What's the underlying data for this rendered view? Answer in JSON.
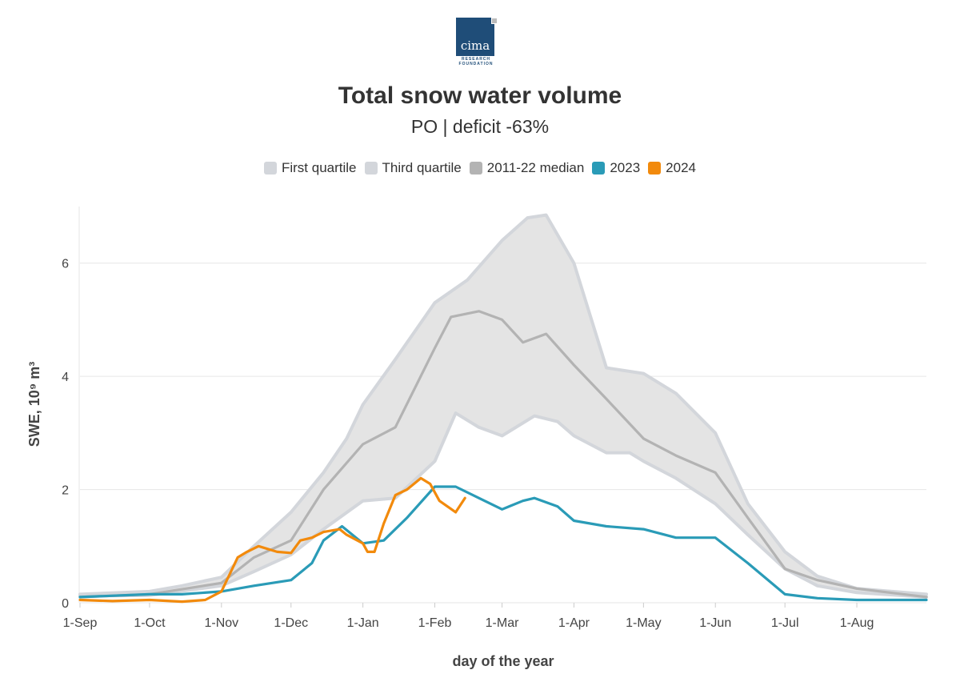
{
  "logo": {
    "text": "cima",
    "sub": "RESEARCH FOUNDATION"
  },
  "chart_data": {
    "type": "line",
    "title": "Total snow water volume",
    "subtitle": "PO | deficit -63%",
    "xlabel": "day of the year",
    "ylabel": "SWE, 10⁹ m³",
    "ylim": [
      0,
      7
    ],
    "yticks": [
      0,
      2,
      4,
      6
    ],
    "xticks": [
      "1-Sep",
      "1-Oct",
      "1-Nov",
      "1-Dec",
      "1-Jan",
      "1-Feb",
      "1-Mar",
      "1-Apr",
      "1-May",
      "1-Jun",
      "1-Jul",
      "1-Aug"
    ],
    "xtick_dates": [
      "2023-09-01",
      "2023-10-01",
      "2023-11-01",
      "2023-12-01",
      "2024-01-01",
      "2024-02-01",
      "2024-03-01",
      "2024-04-01",
      "2024-05-01",
      "2024-06-01",
      "2024-07-01",
      "2024-08-01"
    ],
    "xlim": [
      "2023-09-01",
      "2024-08-31"
    ],
    "grid": true,
    "legend_position": "top",
    "series": [
      {
        "name": "First quartile",
        "color": "#d3d6db",
        "kind": "band-edge",
        "points": [
          [
            "2023-09-01",
            0.12
          ],
          [
            "2023-10-01",
            0.13
          ],
          [
            "2023-11-01",
            0.3
          ],
          [
            "2023-11-15",
            0.55
          ],
          [
            "2023-12-01",
            0.85
          ],
          [
            "2023-12-15",
            1.3
          ],
          [
            "2024-01-01",
            1.8
          ],
          [
            "2024-01-15",
            1.85
          ],
          [
            "2024-02-01",
            2.5
          ],
          [
            "2024-02-10",
            3.35
          ],
          [
            "2024-02-20",
            3.1
          ],
          [
            "2024-03-01",
            2.95
          ],
          [
            "2024-03-15",
            3.3
          ],
          [
            "2024-03-25",
            3.2
          ],
          [
            "2024-04-01",
            2.95
          ],
          [
            "2024-04-15",
            2.65
          ],
          [
            "2024-04-25",
            2.65
          ],
          [
            "2024-05-01",
            2.5
          ],
          [
            "2024-05-15",
            2.2
          ],
          [
            "2024-06-01",
            1.75
          ],
          [
            "2024-06-15",
            1.2
          ],
          [
            "2024-07-01",
            0.6
          ],
          [
            "2024-07-15",
            0.3
          ],
          [
            "2024-08-01",
            0.18
          ],
          [
            "2024-08-31",
            0.1
          ]
        ]
      },
      {
        "name": "Third quartile",
        "color": "#d3d6db",
        "kind": "band-edge",
        "points": [
          [
            "2023-09-01",
            0.15
          ],
          [
            "2023-10-01",
            0.2
          ],
          [
            "2023-10-15",
            0.3
          ],
          [
            "2023-11-01",
            0.45
          ],
          [
            "2023-11-15",
            1.0
          ],
          [
            "2023-12-01",
            1.6
          ],
          [
            "2023-12-15",
            2.3
          ],
          [
            "2023-12-25",
            2.9
          ],
          [
            "2024-01-01",
            3.5
          ],
          [
            "2024-01-15",
            4.3
          ],
          [
            "2024-02-01",
            5.3
          ],
          [
            "2024-02-15",
            5.7
          ],
          [
            "2024-03-01",
            6.4
          ],
          [
            "2024-03-12",
            6.8
          ],
          [
            "2024-03-20",
            6.85
          ],
          [
            "2024-04-01",
            6.0
          ],
          [
            "2024-04-15",
            4.15
          ],
          [
            "2024-05-01",
            4.05
          ],
          [
            "2024-05-15",
            3.7
          ],
          [
            "2024-06-01",
            3.0
          ],
          [
            "2024-06-15",
            1.75
          ],
          [
            "2024-07-01",
            0.9
          ],
          [
            "2024-07-15",
            0.47
          ],
          [
            "2024-08-01",
            0.25
          ],
          [
            "2024-08-31",
            0.15
          ]
        ]
      },
      {
        "name": "2011-22 median",
        "color": "#b3b3b3",
        "kind": "line",
        "points": [
          [
            "2023-09-01",
            0.1
          ],
          [
            "2023-10-01",
            0.15
          ],
          [
            "2023-11-01",
            0.35
          ],
          [
            "2023-11-15",
            0.8
          ],
          [
            "2023-12-01",
            1.1
          ],
          [
            "2023-12-15",
            2.0
          ],
          [
            "2024-01-01",
            2.8
          ],
          [
            "2024-01-15",
            3.1
          ],
          [
            "2024-02-01",
            4.5
          ],
          [
            "2024-02-08",
            5.05
          ],
          [
            "2024-02-20",
            5.15
          ],
          [
            "2024-03-01",
            5.0
          ],
          [
            "2024-03-10",
            4.6
          ],
          [
            "2024-03-20",
            4.75
          ],
          [
            "2024-04-01",
            4.2
          ],
          [
            "2024-04-15",
            3.6
          ],
          [
            "2024-05-01",
            2.9
          ],
          [
            "2024-05-15",
            2.6
          ],
          [
            "2024-06-01",
            2.3
          ],
          [
            "2024-06-15",
            1.5
          ],
          [
            "2024-07-01",
            0.6
          ],
          [
            "2024-07-15",
            0.4
          ],
          [
            "2024-08-01",
            0.25
          ],
          [
            "2024-08-31",
            0.1
          ]
        ]
      },
      {
        "name": "2023",
        "color": "#2a9bb7",
        "kind": "line",
        "points": [
          [
            "2023-09-01",
            0.1
          ],
          [
            "2023-10-01",
            0.15
          ],
          [
            "2023-10-15",
            0.15
          ],
          [
            "2023-11-01",
            0.2
          ],
          [
            "2023-11-15",
            0.3
          ],
          [
            "2023-12-01",
            0.4
          ],
          [
            "2023-12-10",
            0.7
          ],
          [
            "2023-12-15",
            1.1
          ],
          [
            "2023-12-23",
            1.35
          ],
          [
            "2024-01-01",
            1.05
          ],
          [
            "2024-01-10",
            1.1
          ],
          [
            "2024-01-20",
            1.5
          ],
          [
            "2024-02-01",
            2.05
          ],
          [
            "2024-02-10",
            2.05
          ],
          [
            "2024-02-20",
            1.85
          ],
          [
            "2024-03-01",
            1.65
          ],
          [
            "2024-03-10",
            1.8
          ],
          [
            "2024-03-15",
            1.85
          ],
          [
            "2024-03-25",
            1.7
          ],
          [
            "2024-04-01",
            1.45
          ],
          [
            "2024-04-15",
            1.35
          ],
          [
            "2024-05-01",
            1.3
          ],
          [
            "2024-05-15",
            1.15
          ],
          [
            "2024-06-01",
            1.15
          ],
          [
            "2024-06-15",
            0.7
          ],
          [
            "2024-07-01",
            0.15
          ],
          [
            "2024-07-15",
            0.08
          ],
          [
            "2024-08-01",
            0.05
          ],
          [
            "2024-08-31",
            0.05
          ]
        ]
      },
      {
        "name": "2024",
        "color": "#f28a0c",
        "kind": "line",
        "points": [
          [
            "2023-09-01",
            0.05
          ],
          [
            "2023-09-15",
            0.03
          ],
          [
            "2023-10-01",
            0.05
          ],
          [
            "2023-10-15",
            0.02
          ],
          [
            "2023-10-25",
            0.05
          ],
          [
            "2023-11-01",
            0.2
          ],
          [
            "2023-11-08",
            0.8
          ],
          [
            "2023-11-12",
            0.9
          ],
          [
            "2023-11-17",
            1.0
          ],
          [
            "2023-11-25",
            0.9
          ],
          [
            "2023-12-01",
            0.88
          ],
          [
            "2023-12-05",
            1.1
          ],
          [
            "2023-12-10",
            1.15
          ],
          [
            "2023-12-15",
            1.25
          ],
          [
            "2023-12-22",
            1.3
          ],
          [
            "2023-12-25",
            1.2
          ],
          [
            "2024-01-01",
            1.05
          ],
          [
            "2024-01-03",
            0.9
          ],
          [
            "2024-01-06",
            0.9
          ],
          [
            "2024-01-10",
            1.4
          ],
          [
            "2024-01-15",
            1.9
          ],
          [
            "2024-01-20",
            2.0
          ],
          [
            "2024-01-26",
            2.2
          ],
          [
            "2024-01-30",
            2.1
          ],
          [
            "2024-02-03",
            1.8
          ],
          [
            "2024-02-10",
            1.6
          ],
          [
            "2024-02-14",
            1.85
          ]
        ]
      }
    ]
  }
}
